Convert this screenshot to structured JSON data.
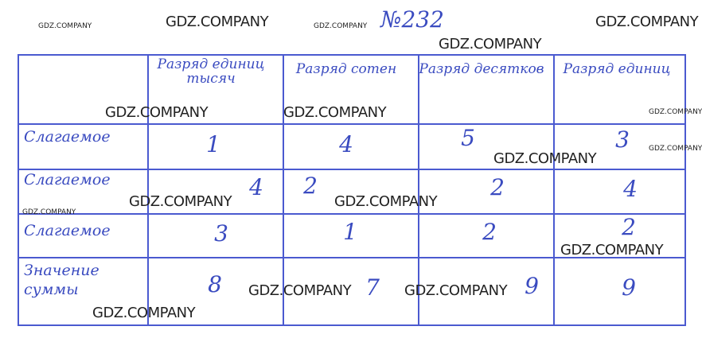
{
  "title": "№232",
  "watermark": "GDZ.COMPANY",
  "ink_color": "#3a4bc0",
  "table": {
    "headers": [
      "Разряд единиц тысяч",
      "Разряд сотен",
      "Разряд десятков",
      "Разряд единиц"
    ],
    "rows": [
      {
        "label": "Слагаемое",
        "values": [
          "1",
          "4",
          "5",
          "3"
        ]
      },
      {
        "label": "Слагаемое",
        "values": [
          "4",
          "2",
          "2",
          "4"
        ]
      },
      {
        "label": "Слагаемое",
        "values": [
          "3",
          "1",
          "2",
          "2"
        ]
      },
      {
        "label": "Значение суммы",
        "values": [
          "8",
          "7",
          "9",
          "9"
        ]
      }
    ]
  }
}
